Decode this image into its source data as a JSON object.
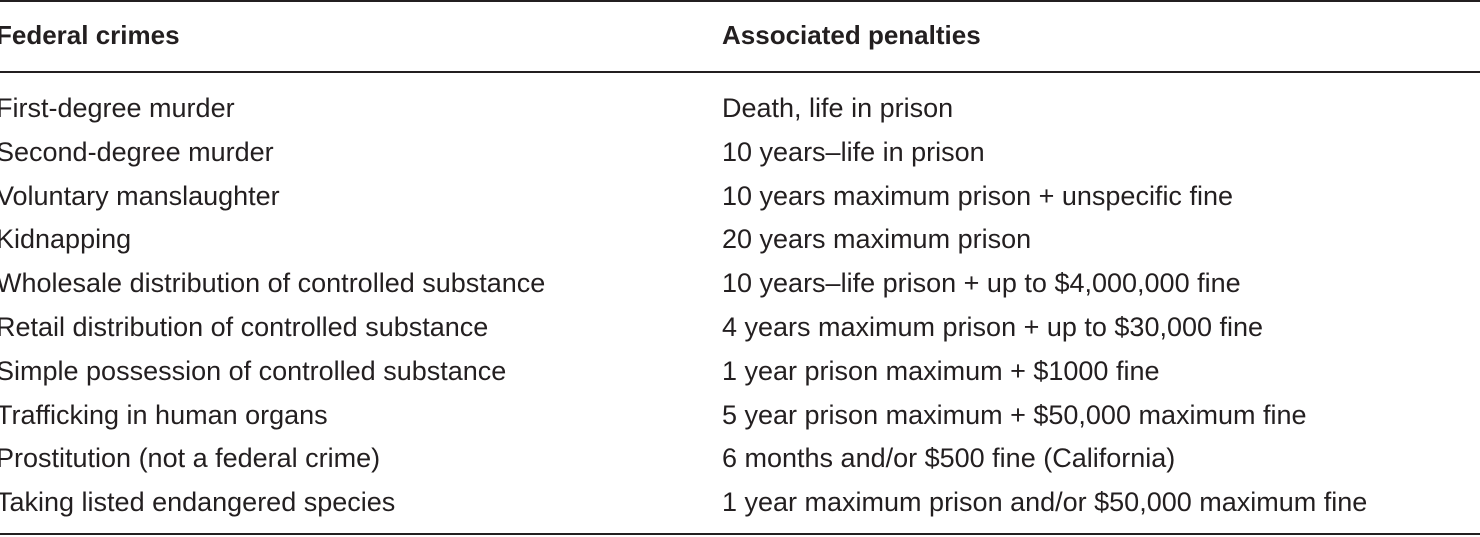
{
  "table": {
    "header": [
      "Federal crimes",
      "Associated penalties"
    ],
    "rows": [
      [
        "First-degree murder",
        "Death, life in prison"
      ],
      [
        "Second-degree murder",
        "10 years–life in prison"
      ],
      [
        "Voluntary manslaughter",
        "10 years maximum prison + unspecific fine"
      ],
      [
        "Kidnapping",
        "20 years maximum prison"
      ],
      [
        "Wholesale distribution of controlled substance",
        "10 years–life prison + up to $4,000,000 fine"
      ],
      [
        "Retail distribution of controlled substance",
        "4 years maximum prison + up to $30,000 fine"
      ],
      [
        "Simple possession of controlled substance",
        "1 year prison maximum + $1000 fine"
      ],
      [
        "Trafficking in human organs",
        "5 year prison maximum + $50,000 maximum fine"
      ],
      [
        "Prostitution (not a federal crime)",
        "6 months and/or $500 fine (California)"
      ],
      [
        "Taking listed endangered species",
        "1 year maximum prison and/or $50,000 maximum fine"
      ]
    ]
  }
}
